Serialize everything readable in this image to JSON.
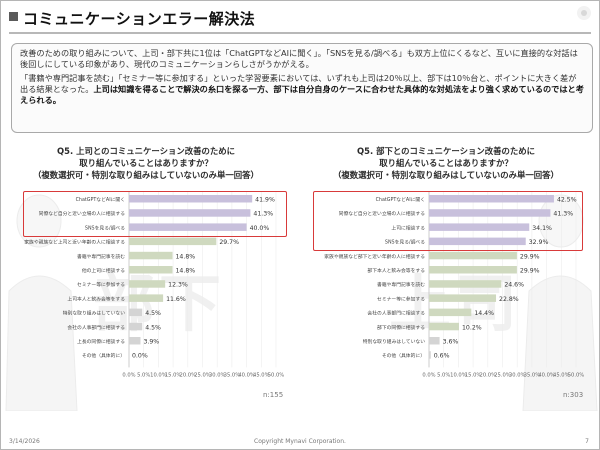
{
  "page": {
    "title": "コミュニケーションエラー解決法",
    "summary_p1": "改善のための取り組みについて、上司・部下共に1位は「ChatGPTなどAIに聞く」。「SNSを見る/調べる」も双方上位にくるなど、互いに直接的な対話は後回しにしている印象があり、現代のコミュニケーションらしさがうかがえる。",
    "summary_p2a": "「書籍や専門記事を読む」「セミナー等に参加する」といった学習要素においては、いずれも上司は20％以上、部下は10％台と、ポイントに大きく差が出る結果となった。",
    "summary_p2b": "上司は知識を得ることで解決の糸口を探る一方、部下は自分自身のケースに合わせた具体的な対処法をより強く求めているのではと考えられる。",
    "footer_date": "3/14/2026",
    "footer_copy": "Copyright Mynavi Corporation.",
    "footer_page": "7"
  },
  "panels": [
    {
      "watermark": "部下",
      "q_title_1": "Q5. 上司とのコミュニケーション改善のために",
      "q_title_2": "取り組んでいることはありますか？",
      "q_sub": "（複数選択可・特別な取り組みはしていないのみ単一回答）",
      "n": "n:155"
    },
    {
      "watermark": "上司",
      "q_title_1": "Q5. 部下とのコミュニケーション改善のために",
      "q_title_2": "取り組んでいることはありますか？",
      "q_sub": "（複数選択可・特別な取り組みはしていないのみ単一回答）",
      "n": "n:303"
    }
  ],
  "chart_data": [
    {
      "type": "bar",
      "orientation": "horizontal",
      "categories": [
        "ChatGPTなどAIに聞く",
        "同僚など自分と近い立場の人に相談する",
        "SNSを見る/調べる",
        "家族や親族など上司と近い年齢の人に相談する",
        "書籍や専門記事を読む",
        "他の上司に相談する",
        "セミナー等に参加する",
        "上司本人と飲み会等をする",
        "特別な取り組みはしていない",
        "会社の人事部門に相談する",
        "上長の同僚に相談する",
        "その他（具体的に）"
      ],
      "values": [
        41.9,
        41.3,
        40.0,
        29.7,
        14.8,
        14.8,
        12.3,
        11.6,
        4.5,
        4.5,
        3.9,
        0.0
      ],
      "value_labels": [
        "41.9%",
        "41.3%",
        "40.0%",
        "29.7%",
        "14.8%",
        "14.8%",
        "12.3%",
        "11.6%",
        "4.5%",
        "4.5%",
        "3.9%",
        "0.0%"
      ],
      "highlight_top": 3,
      "xlim": [
        0,
        50
      ],
      "ticks": [
        "0.0%",
        "5.0%",
        "10.0%",
        "15.0%",
        "20.0%",
        "25.0%",
        "30.0%",
        "35.0%",
        "40.0%",
        "45.0%",
        "50.0%"
      ],
      "bar_colors": {
        "highlighted": "#c8c0dc",
        "light": "#cfd9bf",
        "gray": "#d4d4d4"
      }
    },
    {
      "type": "bar",
      "orientation": "horizontal",
      "categories": [
        "ChatGPTなどAIに聞く",
        "同僚など自分と近い立場の人に相談する",
        "上司に相談する",
        "SNSを見る/調べる",
        "家族や親族など部下と近い年齢の人に相談する",
        "部下本人と飲み会等をする",
        "書籍や専門記事を読む",
        "セミナー等に参加する",
        "会社の人事部門に相談する",
        "部下の同僚に相談する",
        "特別な取り組みはしていない",
        "その他（具体的に）"
      ],
      "values": [
        42.5,
        41.3,
        34.1,
        32.9,
        29.9,
        29.9,
        24.6,
        22.8,
        14.4,
        10.2,
        3.6,
        0.6
      ],
      "value_labels": [
        "42.5%",
        "41.3%",
        "34.1%",
        "32.9%",
        "29.9%",
        "29.9%",
        "24.6%",
        "22.8%",
        "14.4%",
        "10.2%",
        "3.6%",
        "0.6%"
      ],
      "highlight_top": 4,
      "xlim": [
        0,
        50
      ],
      "ticks": [
        "0.0%",
        "5.0%",
        "10.0%",
        "15.0%",
        "20.0%",
        "25.0%",
        "30.0%",
        "35.0%",
        "40.0%",
        "45.0%",
        "50.0%"
      ],
      "bar_colors": {
        "highlighted": "#c8c0dc",
        "light": "#cfd9bf",
        "gray": "#d4d4d4"
      }
    }
  ]
}
